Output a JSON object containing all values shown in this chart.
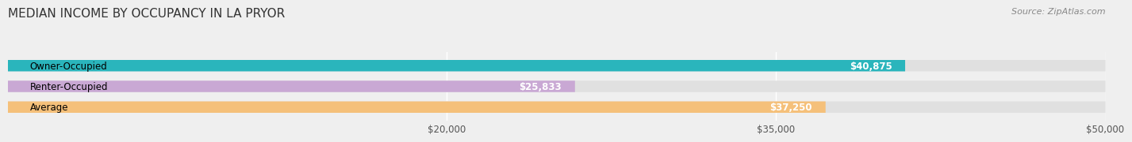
{
  "title": "MEDIAN INCOME BY OCCUPANCY IN LA PRYOR",
  "source": "Source: ZipAtlas.com",
  "categories": [
    "Owner-Occupied",
    "Renter-Occupied",
    "Average"
  ],
  "values": [
    40875,
    25833,
    37250
  ],
  "labels": [
    "$40,875",
    "$25,833",
    "$37,250"
  ],
  "bar_colors": [
    "#2ab5bc",
    "#c9a8d4",
    "#f5c07a"
  ],
  "background_color": "#efefef",
  "bar_bg_color": "#e0e0e0",
  "xmin": 0,
  "xmax": 50000,
  "xticks": [
    20000,
    35000,
    50000
  ],
  "xtick_labels": [
    "$20,000",
    "$35,000",
    "$50,000"
  ],
  "title_fontsize": 11,
  "label_fontsize": 8.5,
  "source_fontsize": 8,
  "bar_height": 0.55,
  "value_threshold_ratio": 0.45
}
